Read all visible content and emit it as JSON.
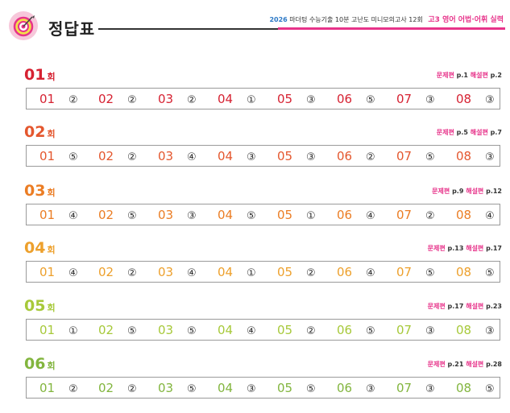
{
  "header": {
    "title": "정답표",
    "year": "2026",
    "series": "마더텅 수능기출 10분 고난도 미니모의고사 12회",
    "grade_subject": "고3 영어 어법·어휘 실력",
    "colors": {
      "accent": "#e7338a",
      "year": "#2b78c6"
    }
  },
  "sections": [
    {
      "num": "01",
      "hoe": "회",
      "color": "#d62232",
      "problem_label": "문제편",
      "problem_page": "p.1",
      "explain_label": "해설편",
      "explain_page": "p.2",
      "answers": [
        {
          "q": "01",
          "a": "②"
        },
        {
          "q": "02",
          "a": "②"
        },
        {
          "q": "03",
          "a": "②"
        },
        {
          "q": "04",
          "a": "①"
        },
        {
          "q": "05",
          "a": "③"
        },
        {
          "q": "06",
          "a": "⑤"
        },
        {
          "q": "07",
          "a": "③"
        },
        {
          "q": "08",
          "a": "③"
        }
      ]
    },
    {
      "num": "02",
      "hoe": "회",
      "color": "#e4572e",
      "problem_label": "문제편",
      "problem_page": "p.5",
      "explain_label": "해설편",
      "explain_page": "p.7",
      "answers": [
        {
          "q": "01",
          "a": "⑤"
        },
        {
          "q": "02",
          "a": "②"
        },
        {
          "q": "03",
          "a": "④"
        },
        {
          "q": "04",
          "a": "③"
        },
        {
          "q": "05",
          "a": "③"
        },
        {
          "q": "06",
          "a": "②"
        },
        {
          "q": "07",
          "a": "⑤"
        },
        {
          "q": "08",
          "a": "③"
        }
      ]
    },
    {
      "num": "03",
      "hoe": "회",
      "color": "#eb7d24",
      "problem_label": "문제편",
      "problem_page": "p.9",
      "explain_label": "해설편",
      "explain_page": "p.12",
      "answers": [
        {
          "q": "01",
          "a": "④"
        },
        {
          "q": "02",
          "a": "⑤"
        },
        {
          "q": "03",
          "a": "③"
        },
        {
          "q": "04",
          "a": "⑤"
        },
        {
          "q": "05",
          "a": "①"
        },
        {
          "q": "06",
          "a": "④"
        },
        {
          "q": "07",
          "a": "②"
        },
        {
          "q": "08",
          "a": "④"
        }
      ]
    },
    {
      "num": "04",
      "hoe": "회",
      "color": "#eda02c",
      "problem_label": "문제편",
      "problem_page": "p.13",
      "explain_label": "해설편",
      "explain_page": "p.17",
      "answers": [
        {
          "q": "01",
          "a": "④"
        },
        {
          "q": "02",
          "a": "②"
        },
        {
          "q": "03",
          "a": "④"
        },
        {
          "q": "04",
          "a": "①"
        },
        {
          "q": "05",
          "a": "②"
        },
        {
          "q": "06",
          "a": "④"
        },
        {
          "q": "07",
          "a": "⑤"
        },
        {
          "q": "08",
          "a": "⑤"
        }
      ]
    },
    {
      "num": "05",
      "hoe": "회",
      "color": "#a7c93a",
      "problem_label": "문제편",
      "problem_page": "p.17",
      "explain_label": "해설편",
      "explain_page": "p.23",
      "answers": [
        {
          "q": "01",
          "a": "①"
        },
        {
          "q": "02",
          "a": "⑤"
        },
        {
          "q": "03",
          "a": "⑤"
        },
        {
          "q": "04",
          "a": "④"
        },
        {
          "q": "05",
          "a": "②"
        },
        {
          "q": "06",
          "a": "⑤"
        },
        {
          "q": "07",
          "a": "③"
        },
        {
          "q": "08",
          "a": "③"
        }
      ]
    },
    {
      "num": "06",
      "hoe": "회",
      "color": "#82b53e",
      "problem_label": "문제편",
      "problem_page": "p.21",
      "explain_label": "해설편",
      "explain_page": "p.28",
      "answers": [
        {
          "q": "01",
          "a": "②"
        },
        {
          "q": "02",
          "a": "②"
        },
        {
          "q": "03",
          "a": "⑤"
        },
        {
          "q": "04",
          "a": "③"
        },
        {
          "q": "05",
          "a": "⑤"
        },
        {
          "q": "06",
          "a": "③"
        },
        {
          "q": "07",
          "a": "③"
        },
        {
          "q": "08",
          "a": "⑤"
        }
      ]
    }
  ]
}
